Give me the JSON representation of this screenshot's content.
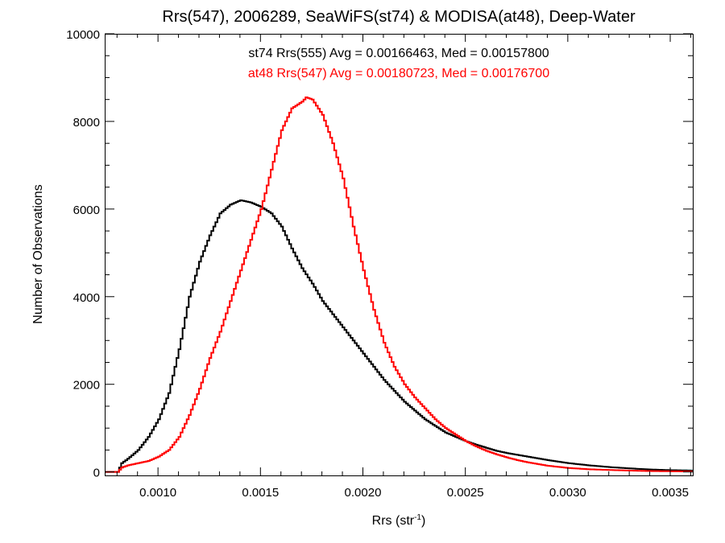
{
  "chart_data": {
    "type": "line",
    "title": "Rrs(547), 2006289, SeaWiFS(st74) & MODISA(at48), Deep-Water",
    "xlabel_base": "Rrs (str",
    "xlabel_sup": "-1",
    "xlabel_close": ")",
    "ylabel": "Number of Observations",
    "xlim": [
      0.00074,
      0.00361
    ],
    "ylim": [
      -80,
      10000
    ],
    "xticks": [
      0.001,
      0.0015,
      0.002,
      0.0025,
      0.003,
      0.0035
    ],
    "xtick_labels": [
      "0.0010",
      "0.0015",
      "0.0020",
      "0.0025",
      "0.0030",
      "0.0035"
    ],
    "yticks": [
      0,
      2000,
      4000,
      6000,
      8000,
      10000
    ],
    "ytick_labels": [
      "0",
      "2000",
      "4000",
      "6000",
      "8000",
      "10000"
    ],
    "annotations": [
      {
        "text": "st74 Rrs(555) Avg = 0.00166463, Med = 0.00157800",
        "color": "#000000"
      },
      {
        "text": "at48 Rrs(547) Avg = 0.00180723, Med = 0.00176700",
        "color": "#ff0000"
      }
    ],
    "series": [
      {
        "color": "#000000",
        "x": [
          0.00074,
          0.0008,
          0.00082,
          0.00085,
          0.0009,
          0.00095,
          0.001,
          0.00105,
          0.0011,
          0.00115,
          0.0012,
          0.00125,
          0.0013,
          0.00135,
          0.0014,
          0.00145,
          0.0015,
          0.00155,
          0.0016,
          0.00165,
          0.0017,
          0.00175,
          0.0018,
          0.00185,
          0.0019,
          0.00195,
          0.002,
          0.00205,
          0.0021,
          0.00215,
          0.0022,
          0.00225,
          0.0023,
          0.00235,
          0.0024,
          0.00245,
          0.0025,
          0.00255,
          0.0026,
          0.00265,
          0.0027,
          0.00275,
          0.0028,
          0.0029,
          0.003,
          0.0031,
          0.0032,
          0.0033,
          0.0034,
          0.0035,
          0.00361
        ],
        "y": [
          0,
          0,
          200,
          300,
          500,
          800,
          1200,
          1800,
          2800,
          4000,
          4800,
          5400,
          5900,
          6100,
          6200,
          6150,
          6050,
          5900,
          5600,
          5100,
          4650,
          4300,
          3900,
          3600,
          3300,
          3000,
          2700,
          2400,
          2100,
          1850,
          1600,
          1400,
          1200,
          1050,
          900,
          800,
          700,
          620,
          550,
          480,
          430,
          390,
          350,
          270,
          200,
          150,
          110,
          80,
          55,
          40,
          30
        ]
      },
      {
        "color": "#ff0000",
        "x": [
          0.00074,
          0.0008,
          0.00082,
          0.00085,
          0.0009,
          0.00095,
          0.001,
          0.00105,
          0.0011,
          0.00115,
          0.0012,
          0.00125,
          0.0013,
          0.00135,
          0.0014,
          0.00145,
          0.0015,
          0.00155,
          0.0016,
          0.00165,
          0.0017,
          0.00172,
          0.00175,
          0.0018,
          0.00185,
          0.0019,
          0.00195,
          0.002,
          0.00205,
          0.0021,
          0.00215,
          0.0022,
          0.00225,
          0.0023,
          0.00235,
          0.0024,
          0.00245,
          0.0025,
          0.00255,
          0.0026,
          0.00265,
          0.0027,
          0.00275,
          0.0028,
          0.0029,
          0.003,
          0.0031,
          0.0032,
          0.0033,
          0.0034,
          0.0035,
          0.00361
        ],
        "y": [
          0,
          0,
          100,
          150,
          200,
          250,
          350,
          500,
          800,
          1300,
          1900,
          2600,
          3200,
          3900,
          4600,
          5300,
          6000,
          6900,
          7800,
          8300,
          8450,
          8550,
          8500,
          8150,
          7500,
          6700,
          5600,
          4600,
          3700,
          2950,
          2400,
          2000,
          1700,
          1450,
          1200,
          1000,
          850,
          700,
          580,
          480,
          400,
          330,
          270,
          220,
          140,
          90,
          60,
          45,
          30,
          20,
          15,
          10
        ]
      }
    ]
  }
}
